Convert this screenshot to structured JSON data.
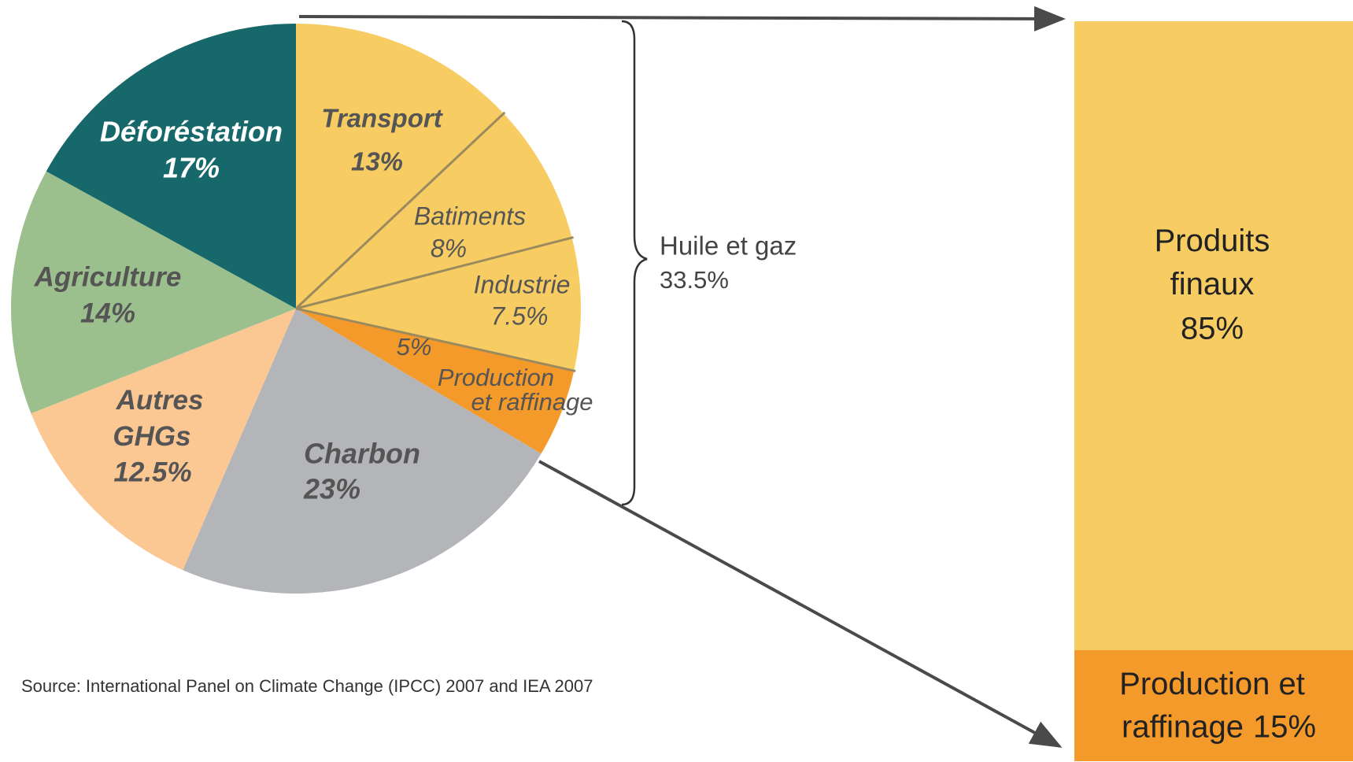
{
  "chart_data": {
    "type": "pie",
    "categories": [
      "Transport",
      "Batiments",
      "Industrie",
      "Production et raffinage",
      "Charbon",
      "Autres GHGs",
      "Agriculture",
      "Déforéstation"
    ],
    "values": [
      13,
      8,
      7.5,
      5,
      23,
      12.5,
      14,
      17
    ],
    "value_labels": [
      "13%",
      "8%",
      "7.5%",
      "5%",
      "23%",
      "12.5%",
      "14%",
      "17%"
    ],
    "colors": [
      "#f7cd63",
      "#f7cd63",
      "#f7cd63",
      "#f39a2b",
      "#b3b5b8",
      "#fbc793",
      "#9cbf8e",
      "#17686a"
    ],
    "annotation": {
      "label": "Huile et gaz",
      "value": 33.5,
      "value_label": "33.5%"
    },
    "bar": {
      "categories": [
        "Produits finaux",
        "Production et raffinage"
      ],
      "values": [
        85,
        15
      ],
      "value_labels": [
        "85%",
        "15%"
      ],
      "colors": [
        "#f7cd63",
        "#f39a2b"
      ]
    },
    "source": "Source: International Panel on Climate Change (IPCC) 2007 and IEA 2007"
  }
}
